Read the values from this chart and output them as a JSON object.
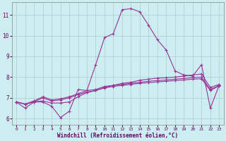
{
  "xlabel": "Windchill (Refroidissement éolien,°C)",
  "background_color": "#cceef0",
  "line_color": "#993399",
  "grid_color": "#aacccc",
  "xlim": [
    -0.5,
    23.5
  ],
  "ylim": [
    5.7,
    11.6
  ],
  "yticks": [
    6,
    7,
    8,
    9,
    10,
    11
  ],
  "xticks": [
    0,
    1,
    2,
    3,
    4,
    5,
    6,
    7,
    8,
    9,
    10,
    11,
    12,
    13,
    14,
    15,
    16,
    17,
    18,
    19,
    20,
    21,
    22,
    23
  ],
  "series1_x": [
    0,
    1,
    2,
    3,
    4,
    5,
    6,
    7,
    8,
    9,
    10,
    11,
    12,
    13,
    14,
    15,
    16,
    17,
    18,
    19,
    20,
    21,
    22,
    23
  ],
  "series1_y": [
    6.8,
    6.5,
    6.8,
    6.8,
    6.6,
    6.05,
    6.35,
    7.4,
    7.35,
    8.6,
    9.9,
    10.1,
    11.25,
    11.3,
    11.15,
    10.5,
    9.8,
    9.3,
    8.3,
    8.1,
    8.05,
    8.6,
    6.5,
    7.6
  ],
  "series2_x": [
    0,
    1,
    2,
    3,
    4,
    5,
    6,
    7,
    8,
    9,
    10,
    11,
    12,
    13,
    14,
    15,
    16,
    17,
    18,
    19,
    20,
    21,
    22,
    23
  ],
  "series2_y": [
    6.8,
    6.7,
    6.8,
    6.85,
    6.75,
    6.75,
    6.8,
    7.05,
    7.25,
    7.35,
    7.5,
    7.6,
    7.7,
    7.75,
    7.85,
    7.9,
    7.95,
    7.97,
    8.0,
    8.05,
    8.1,
    8.15,
    7.5,
    7.65
  ],
  "series3_x": [
    0,
    1,
    2,
    3,
    4,
    5,
    6,
    7,
    8,
    9,
    10,
    11,
    12,
    13,
    14,
    15,
    16,
    17,
    18,
    19,
    20,
    21,
    22,
    23
  ],
  "series3_y": [
    6.8,
    6.7,
    6.85,
    7.05,
    6.9,
    6.95,
    7.05,
    7.2,
    7.35,
    7.4,
    7.55,
    7.6,
    7.65,
    7.7,
    7.75,
    7.8,
    7.83,
    7.86,
    7.9,
    7.93,
    7.97,
    8.0,
    7.4,
    7.6
  ],
  "series4_x": [
    0,
    1,
    2,
    3,
    4,
    5,
    6,
    7,
    8,
    9,
    10,
    11,
    12,
    13,
    14,
    15,
    16,
    17,
    18,
    19,
    20,
    21,
    22,
    23
  ],
  "series4_y": [
    6.8,
    6.7,
    6.8,
    7.0,
    6.85,
    6.9,
    7.0,
    7.15,
    7.28,
    7.35,
    7.48,
    7.55,
    7.6,
    7.65,
    7.7,
    7.73,
    7.77,
    7.8,
    7.83,
    7.86,
    7.9,
    7.92,
    7.35,
    7.58
  ]
}
